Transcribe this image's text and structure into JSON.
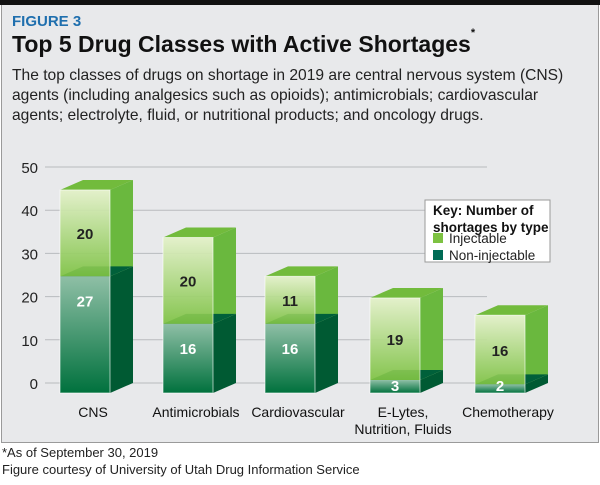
{
  "figure_label": "FIGURE 3",
  "title": "Top 5 Drug Classes with Active Shortages",
  "title_mark": "*",
  "description": "The top classes of drugs on shortage in 2019 are central nervous system (CNS) agents (including analgesics such as opioids); antimicrobials; cardiovascular agents; electrolyte, fluid, or nutritional products; and oncology drugs.",
  "footnotes": [
    "*As of September 30, 2019",
    "Figure courtesy of University of Utah Drug Information Service"
  ],
  "chart_data": {
    "type": "bar",
    "stacked": true,
    "style": "3d",
    "categories": [
      [
        "CNS"
      ],
      [
        "Antimicrobials"
      ],
      [
        "Cardiovascular"
      ],
      [
        "E-Lytes,",
        "Nutrition, Fluids"
      ],
      [
        "Chemotherapy"
      ]
    ],
    "series": [
      {
        "name": "Non-injectable",
        "values": [
          27,
          16,
          16,
          3,
          2
        ],
        "color": "#00643a"
      },
      {
        "name": "Injectable",
        "values": [
          20,
          20,
          11,
          19,
          16
        ],
        "color": "#7dc242"
      }
    ],
    "yticks": [
      0,
      10,
      20,
      30,
      40,
      50
    ],
    "ylim": [
      0,
      50
    ],
    "grid": true,
    "legend": {
      "title": [
        "Key: Number of",
        "shortages by type"
      ],
      "placement": "top-right",
      "entries": [
        "Injectable",
        "Non-injectable"
      ]
    }
  }
}
